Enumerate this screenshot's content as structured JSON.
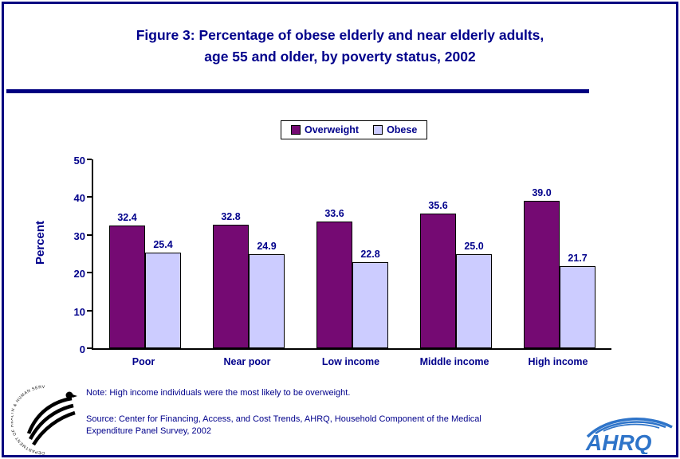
{
  "page": {
    "title_line1": "Figure 3: Percentage of obese elderly and near elderly adults,",
    "title_line2": "age 55 and older, by poverty status, 2002",
    "note": "Note: High income individuals were the most likely to be overweight.",
    "source": "Source: Center for Financing, Access, and Cost Trends, AHRQ, Household Component of the Medical Expenditure Panel Survey, 2002",
    "colors": {
      "frame_border": "#000080",
      "text_navy": "#00008B",
      "overweight_bar": "#750A73",
      "obese_bar": "#CCCCFF",
      "ahrq_blue": "#2E74C9"
    }
  },
  "chart_data": {
    "type": "bar",
    "categories": [
      "Poor",
      "Near poor",
      "Low income",
      "Middle income",
      "High income"
    ],
    "series": [
      {
        "name": "Overweight",
        "color": "#750A73",
        "values": [
          32.4,
          32.8,
          33.6,
          35.6,
          39.0
        ]
      },
      {
        "name": "Obese",
        "color": "#CCCCFF",
        "values": [
          25.4,
          24.9,
          22.8,
          25.0,
          21.7
        ]
      }
    ],
    "title": "Figure 3: Percentage of obese elderly and near elderly adults, age 55 and older, by poverty status, 2002",
    "xlabel": "",
    "ylabel": "Percent",
    "ylim": [
      0,
      50
    ],
    "yticks": [
      0,
      10,
      20,
      30,
      40,
      50
    ],
    "grid": false,
    "legend_position": "top-center",
    "value_labels": true
  },
  "logos": {
    "hhs_ring_text": "DEPARTMENT OF HEALTH & HUMAN SERVICES · USA",
    "ahrq_text": "AHRQ"
  }
}
